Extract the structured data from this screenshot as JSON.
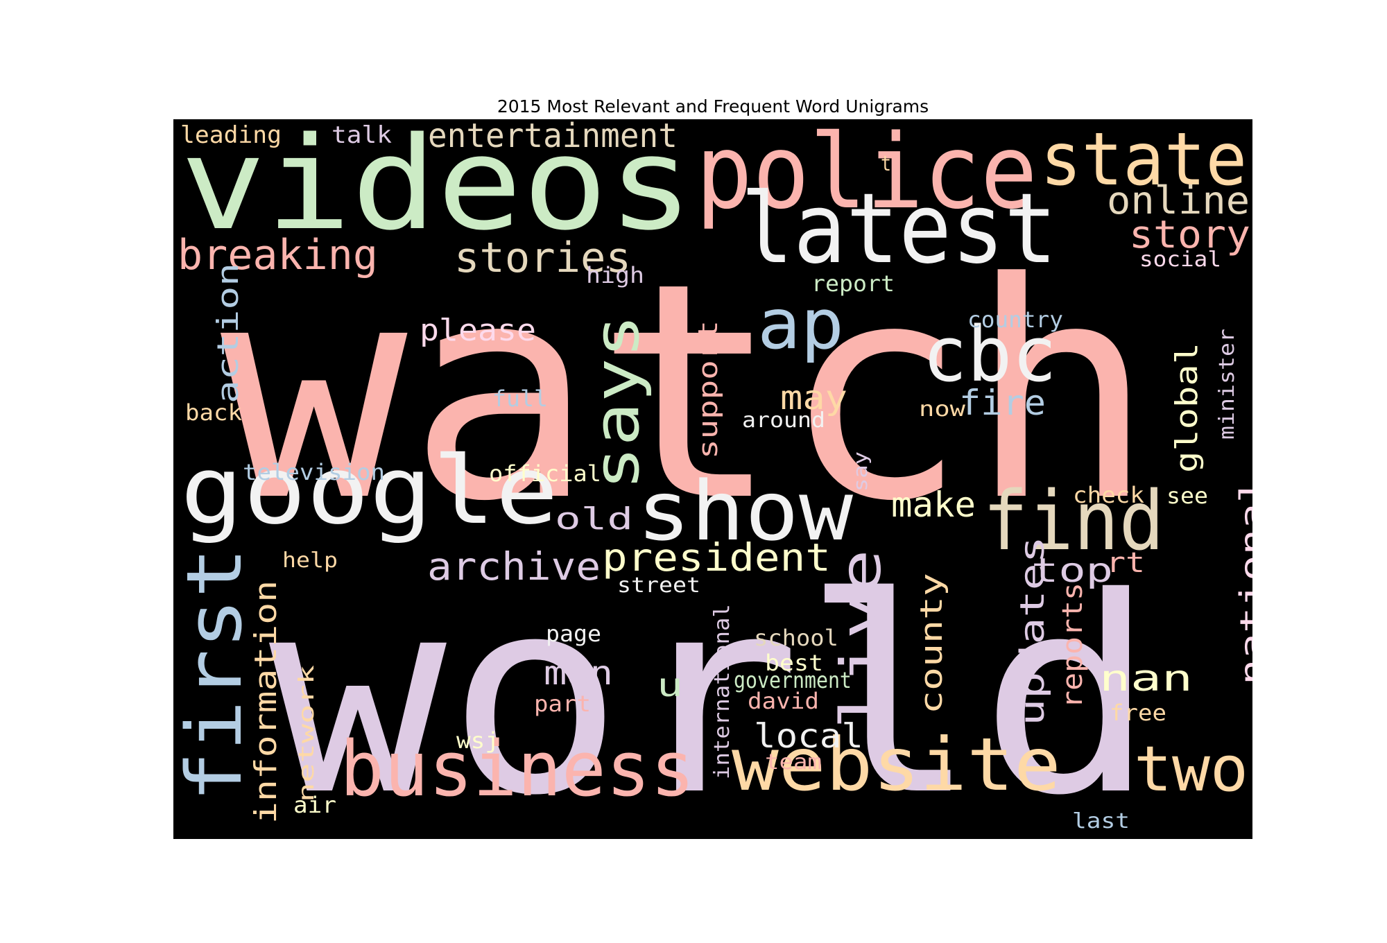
{
  "title": "2015 Most Relevant and Frequent Word Unigrams",
  "colors": {
    "background": "#000000",
    "pink": "#fbb4ae",
    "green": "#ccebc5",
    "blue": "#b3cde3",
    "lilac": "#decbe4",
    "orange": "#fed9a6",
    "yellow": "#ffffcc",
    "tan": "#e5d8bd",
    "white": "#f2f2f2",
    "rose": "#fddaec"
  },
  "words": [
    {
      "text": "watch",
      "color": "pink"
    },
    {
      "text": "world",
      "color": "lilac"
    },
    {
      "text": "videos",
      "color": "green"
    },
    {
      "text": "police",
      "color": "pink"
    },
    {
      "text": "state",
      "color": "orange"
    },
    {
      "text": "latest",
      "color": "white"
    },
    {
      "text": "google",
      "color": "white"
    },
    {
      "text": "show",
      "color": "white"
    },
    {
      "text": "find",
      "color": "tan"
    },
    {
      "text": "business",
      "color": "pink"
    },
    {
      "text": "website",
      "color": "orange"
    },
    {
      "text": "two",
      "color": "orange"
    },
    {
      "text": "first",
      "color": "blue"
    },
    {
      "text": "live",
      "color": "lilac"
    },
    {
      "text": "cbc",
      "color": "white"
    },
    {
      "text": "ap",
      "color": "blue"
    },
    {
      "text": "says",
      "color": "green"
    },
    {
      "text": "breaking",
      "color": "pink"
    },
    {
      "text": "stories",
      "color": "tan"
    },
    {
      "text": "story",
      "color": "pink"
    },
    {
      "text": "online",
      "color": "tan"
    },
    {
      "text": "entertainment",
      "color": "tan"
    },
    {
      "text": "archive",
      "color": "lilac"
    },
    {
      "text": "president",
      "color": "yellow"
    },
    {
      "text": "national",
      "color": "rose"
    },
    {
      "text": "updates",
      "color": "lilac"
    },
    {
      "text": "information",
      "color": "orange"
    },
    {
      "text": "county",
      "color": "orange"
    },
    {
      "text": "nan",
      "color": "yellow"
    },
    {
      "text": "global",
      "color": "yellow"
    },
    {
      "text": "top",
      "color": "lilac"
    },
    {
      "text": "make",
      "color": "yellow"
    },
    {
      "text": "local",
      "color": "white"
    },
    {
      "text": "man",
      "color": "lilac"
    },
    {
      "text": "fire",
      "color": "blue"
    },
    {
      "text": "may",
      "color": "orange"
    },
    {
      "text": "please",
      "color": "rose"
    },
    {
      "text": "action",
      "color": "blue"
    },
    {
      "text": "old",
      "color": "lilac"
    },
    {
      "text": "reports",
      "color": "pink"
    },
    {
      "text": "support",
      "color": "pink"
    },
    {
      "text": "u",
      "color": "green"
    },
    {
      "text": "rt",
      "color": "pink"
    },
    {
      "text": "leading",
      "color": "orange"
    },
    {
      "text": "talk",
      "color": "lilac"
    },
    {
      "text": "t",
      "color": "orange"
    },
    {
      "text": "social",
      "color": "rose"
    },
    {
      "text": "high",
      "color": "lilac"
    },
    {
      "text": "report",
      "color": "green"
    },
    {
      "text": "country",
      "color": "blue"
    },
    {
      "text": "minister",
      "color": "lilac"
    },
    {
      "text": "full",
      "color": "blue"
    },
    {
      "text": "back",
      "color": "orange"
    },
    {
      "text": "now",
      "color": "orange"
    },
    {
      "text": "around",
      "color": "white"
    },
    {
      "text": "television",
      "color": "blue"
    },
    {
      "text": "official",
      "color": "yellow"
    },
    {
      "text": "say",
      "color": "lilac"
    },
    {
      "text": "check",
      "color": "orange"
    },
    {
      "text": "see",
      "color": "yellow"
    },
    {
      "text": "help",
      "color": "orange"
    },
    {
      "text": "street",
      "color": "white"
    },
    {
      "text": "page",
      "color": "white"
    },
    {
      "text": "school",
      "color": "tan"
    },
    {
      "text": "best",
      "color": "yellow"
    },
    {
      "text": "government",
      "color": "green"
    },
    {
      "text": "david",
      "color": "pink"
    },
    {
      "text": "part",
      "color": "pink"
    },
    {
      "text": "free",
      "color": "orange"
    },
    {
      "text": "international",
      "color": "lilac"
    },
    {
      "text": "network",
      "color": "orange"
    },
    {
      "text": "wsj",
      "color": "yellow"
    },
    {
      "text": "team",
      "color": "pink"
    },
    {
      "text": "air",
      "color": "yellow"
    },
    {
      "text": "last",
      "color": "blue"
    }
  ]
}
